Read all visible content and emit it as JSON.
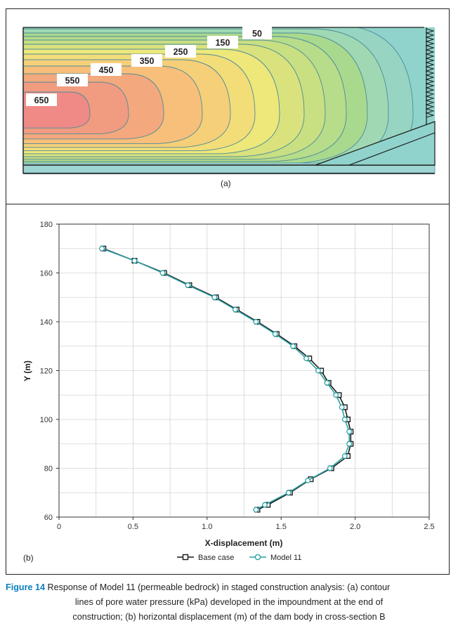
{
  "panel_a": {
    "label": "(a)",
    "contour_labels": [
      "50",
      "150",
      "250",
      "350",
      "450",
      "550",
      "650"
    ],
    "colors": {
      "low": "#8fd3cc",
      "green": "#a9d98d",
      "yellow": "#eee77a",
      "orange": "#f7bf7a",
      "high": "#ef8a86",
      "line": "#4d8c9b"
    }
  },
  "panel_b": {
    "label": "(b)"
  },
  "chart_data": {
    "type": "line",
    "xlabel": "X-displacement (m)",
    "ylabel": "Y (m)",
    "xlim": [
      0,
      2.5
    ],
    "ylim": [
      60,
      180
    ],
    "xticks": [
      "0",
      "0.5",
      "1.0",
      "1.5",
      "2.0",
      "2.5"
    ],
    "yticks": [
      "60",
      "80",
      "100",
      "120",
      "140",
      "160",
      "180"
    ],
    "grid": true,
    "legend_position": "bottom-center",
    "series": [
      {
        "name": "Base case",
        "marker": "square",
        "color": "#1a1a1a",
        "points": [
          [
            1.34,
            63
          ],
          [
            1.41,
            65
          ],
          [
            1.56,
            70
          ],
          [
            1.7,
            75.5
          ],
          [
            1.84,
            80
          ],
          [
            1.95,
            85
          ],
          [
            1.97,
            90
          ],
          [
            1.97,
            95
          ],
          [
            1.95,
            100
          ],
          [
            1.93,
            105
          ],
          [
            1.89,
            110
          ],
          [
            1.82,
            115
          ],
          [
            1.77,
            120
          ],
          [
            1.69,
            125
          ],
          [
            1.59,
            130
          ],
          [
            1.47,
            135
          ],
          [
            1.34,
            140
          ],
          [
            1.2,
            145
          ],
          [
            1.06,
            150
          ],
          [
            0.88,
            155
          ],
          [
            0.71,
            160
          ],
          [
            0.51,
            165
          ],
          [
            0.3,
            170
          ]
        ]
      },
      {
        "name": "Model 11",
        "marker": "circle",
        "color": "#2aa2a4",
        "points": [
          [
            1.33,
            63
          ],
          [
            1.39,
            65
          ],
          [
            1.55,
            70
          ],
          [
            1.68,
            75
          ],
          [
            1.83,
            80
          ],
          [
            1.93,
            85
          ],
          [
            1.96,
            90
          ],
          [
            1.96,
            95
          ],
          [
            1.93,
            100
          ],
          [
            1.91,
            105
          ],
          [
            1.87,
            110
          ],
          [
            1.81,
            115
          ],
          [
            1.75,
            120
          ],
          [
            1.67,
            125
          ],
          [
            1.58,
            130
          ],
          [
            1.46,
            135
          ],
          [
            1.33,
            140
          ],
          [
            1.19,
            145
          ],
          [
            1.05,
            150
          ],
          [
            0.87,
            155
          ],
          [
            0.7,
            160
          ],
          [
            0.51,
            165
          ],
          [
            0.29,
            170
          ]
        ]
      }
    ]
  },
  "caption": {
    "figure_number": "Figure 14",
    "line1": " Response of Model 11 (permeable bedrock) in staged construction analysis: (a) contour",
    "line2": "lines of pore water pressure (kPa) developed in the impoundment at the end of",
    "line3": "construction; (b) horizontal displacement (m) of the dam body in cross-section B"
  }
}
